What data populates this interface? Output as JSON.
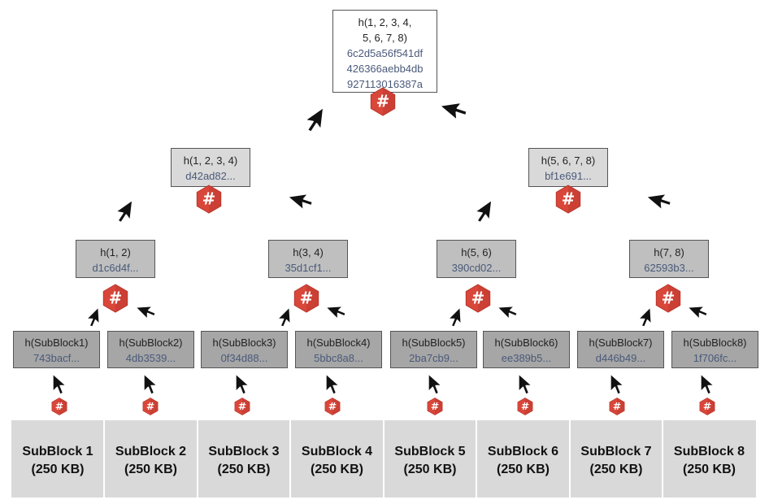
{
  "root": {
    "label_line1": "h(1, 2, 3, 4,",
    "label_line2": "5, 6, 7, 8)",
    "hash_line1": "6c2d5a56f541df",
    "hash_line2": "426366aebb4db",
    "hash_line3": "927113016387a"
  },
  "upper": [
    {
      "label": "h(1, 2, 3, 4)",
      "hash": "d42ad82..."
    },
    {
      "label": "h(5, 6, 7, 8)",
      "hash": "bf1e691..."
    }
  ],
  "mid": [
    {
      "label": "h(1, 2)",
      "hash": "d1c6d4f..."
    },
    {
      "label": "h(3, 4)",
      "hash": "35d1cf1..."
    },
    {
      "label": "h(5, 6)",
      "hash": "390cd02..."
    },
    {
      "label": "h(7, 8)",
      "hash": "62593b3..."
    }
  ],
  "leaves": [
    {
      "label": "h(SubBlock1)",
      "hash": "743bacf..."
    },
    {
      "label": "h(SubBlock2)",
      "hash": "4db3539..."
    },
    {
      "label": "h(SubBlock3)",
      "hash": "0f34d88..."
    },
    {
      "label": "h(SubBlock4)",
      "hash": "5bbc8a8..."
    },
    {
      "label": "h(SubBlock5)",
      "hash": "2ba7cb9..."
    },
    {
      "label": "h(SubBlock6)",
      "hash": "ee389b5..."
    },
    {
      "label": "h(SubBlock7)",
      "hash": "d446b49..."
    },
    {
      "label": "h(SubBlock8)",
      "hash": "1f706fc..."
    }
  ],
  "blocks": [
    {
      "name": "SubBlock 1",
      "size": "(250 KB)"
    },
    {
      "name": "SubBlock 2",
      "size": "(250 KB)"
    },
    {
      "name": "SubBlock 3",
      "size": "(250 KB)"
    },
    {
      "name": "SubBlock 4",
      "size": "(250 KB)"
    },
    {
      "name": "SubBlock 5",
      "size": "(250 KB)"
    },
    {
      "name": "SubBlock 6",
      "size": "(250 KB)"
    },
    {
      "name": "SubBlock 7",
      "size": "(250 KB)"
    },
    {
      "name": "SubBlock 8",
      "size": "(250 KB)"
    }
  ],
  "hash_icon": {
    "symbol": "#",
    "color": "#d9473a"
  },
  "arrow_icon": "arrow-cursor-icon"
}
